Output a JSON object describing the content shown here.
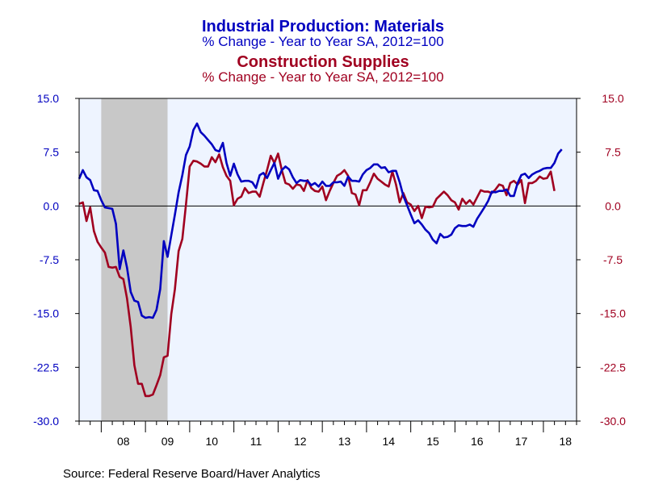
{
  "chart_data": {
    "type": "line",
    "titles": [
      {
        "text": "Industrial Production: Materials",
        "color": "#0000c0"
      },
      {
        "text": "% Change - Year to Year    SA, 2012=100",
        "color": "#0000c0"
      },
      {
        "text": "Construction Supplies",
        "color": "#a00020"
      },
      {
        "text": "% Change - Year to Year    SA, 2012=100",
        "color": "#a00020"
      }
    ],
    "source": "Source:  Federal Reserve Board/Haver Analytics",
    "ylim": [
      -30,
      15
    ],
    "yticks": [
      15,
      7.5,
      0,
      -7.5,
      -15,
      -22.5,
      -30
    ],
    "ytick_labels": [
      "15.0",
      "7.5",
      "0.0",
      "-7.5",
      "-15.0",
      "-22.5",
      "-30.0"
    ],
    "x_start": 2007.5,
    "x_end": 2018.75,
    "year_labels": [
      "08",
      "09",
      "10",
      "11",
      "12",
      "13",
      "14",
      "15",
      "16",
      "17",
      "18"
    ],
    "recession": [
      2008.0,
      2009.5
    ],
    "plot_bg": "#eef4ff",
    "recession_color": "#c8c8c8",
    "zero_line": true,
    "grid": false,
    "series": [
      {
        "color": "#0000c0",
        "start": 2007.5,
        "values": [
          3.8,
          5.0,
          4.0,
          3.6,
          2.2,
          2.1,
          0.8,
          -0.2,
          -0.3,
          -0.4,
          -2.5,
          -8.8,
          -6.2,
          -8.6,
          -12.0,
          -13.2,
          -13.4,
          -15.3,
          -15.6,
          -15.5,
          -15.6,
          -14.5,
          -11.6,
          -4.9,
          -7.1,
          -4.1,
          -1.2,
          1.9,
          4.3,
          7.1,
          8.3,
          10.6,
          11.5,
          10.3,
          9.8,
          9.2,
          8.6,
          7.8,
          7.6,
          8.8,
          6.0,
          4.2,
          5.9,
          4.4,
          3.4,
          3.5,
          3.5,
          3.3,
          2.5,
          4.3,
          4.6,
          3.9,
          5.0,
          6.0,
          3.8,
          5.0,
          5.5,
          5.1,
          4.0,
          3.2,
          3.6,
          3.5,
          3.5,
          2.9,
          3.2,
          2.7,
          3.4,
          2.8,
          2.8,
          3.3,
          3.3,
          3.4,
          2.8,
          4.1,
          3.5,
          3.5,
          3.4,
          4.4,
          5.0,
          5.3,
          5.8,
          5.8,
          5.3,
          5.4,
          4.7,
          4.9,
          4.9,
          3.3,
          1.4,
          0.1,
          -1.2,
          -2.4,
          -2.0,
          -2.6,
          -3.3,
          -3.8,
          -4.7,
          -5.2,
          -3.9,
          -4.4,
          -4.3,
          -4.0,
          -3.1,
          -2.7,
          -2.8,
          -2.8,
          -2.6,
          -2.9,
          -1.8,
          -1.0,
          -0.2,
          0.7,
          2.0,
          1.9,
          2.1,
          2.1,
          2.3,
          1.4,
          1.4,
          3.2,
          4.3,
          4.5,
          3.9,
          4.4,
          4.7,
          4.9,
          5.2,
          5.3,
          5.3,
          6.0,
          7.3,
          7.9
        ]
      },
      {
        "color": "#a00020",
        "start": 2007.5,
        "values": [
          0.3,
          0.5,
          -2.1,
          -0.2,
          -3.5,
          -5.0,
          -5.8,
          -6.5,
          -8.5,
          -8.6,
          -8.5,
          -9.9,
          -10.2,
          -12.9,
          -16.9,
          -22.2,
          -24.8,
          -24.8,
          -26.5,
          -26.5,
          -26.3,
          -25.0,
          -23.6,
          -21.1,
          -20.9,
          -15.1,
          -11.6,
          -6.3,
          -4.6,
          0.2,
          5.5,
          6.3,
          6.2,
          5.9,
          5.5,
          5.5,
          6.8,
          6.1,
          7.2,
          5.4,
          4.2,
          3.5,
          0.1,
          1.0,
          1.3,
          2.5,
          1.8,
          2.0,
          2.0,
          1.3,
          3.2,
          5.0,
          7.0,
          6.0,
          7.3,
          5.0,
          3.2,
          3.0,
          2.4,
          3.0,
          2.9,
          2.1,
          3.6,
          2.5,
          2.1,
          2.0,
          2.7,
          0.8,
          2.1,
          3.2,
          4.2,
          4.5,
          5.0,
          4.2,
          1.8,
          1.6,
          0.1,
          2.2,
          2.2,
          3.3,
          4.5,
          3.8,
          3.4,
          3.0,
          2.7,
          4.8,
          3.0,
          0.5,
          1.8,
          0.5,
          0.2,
          -0.7,
          0.0,
          -1.7,
          -0.1,
          -0.2,
          -0.1,
          1.0,
          1.5,
          2.0,
          1.5,
          0.8,
          0.5,
          -0.5,
          1.0,
          0.3,
          0.8,
          0.2,
          1.2,
          2.2,
          2.0,
          2.0,
          1.8,
          2.3,
          3.0,
          2.8,
          1.5,
          3.2,
          3.5,
          3.0,
          3.6,
          0.4,
          3.2,
          3.2,
          3.5,
          4.1,
          3.8,
          3.9,
          4.8,
          2.1
        ]
      }
    ]
  }
}
